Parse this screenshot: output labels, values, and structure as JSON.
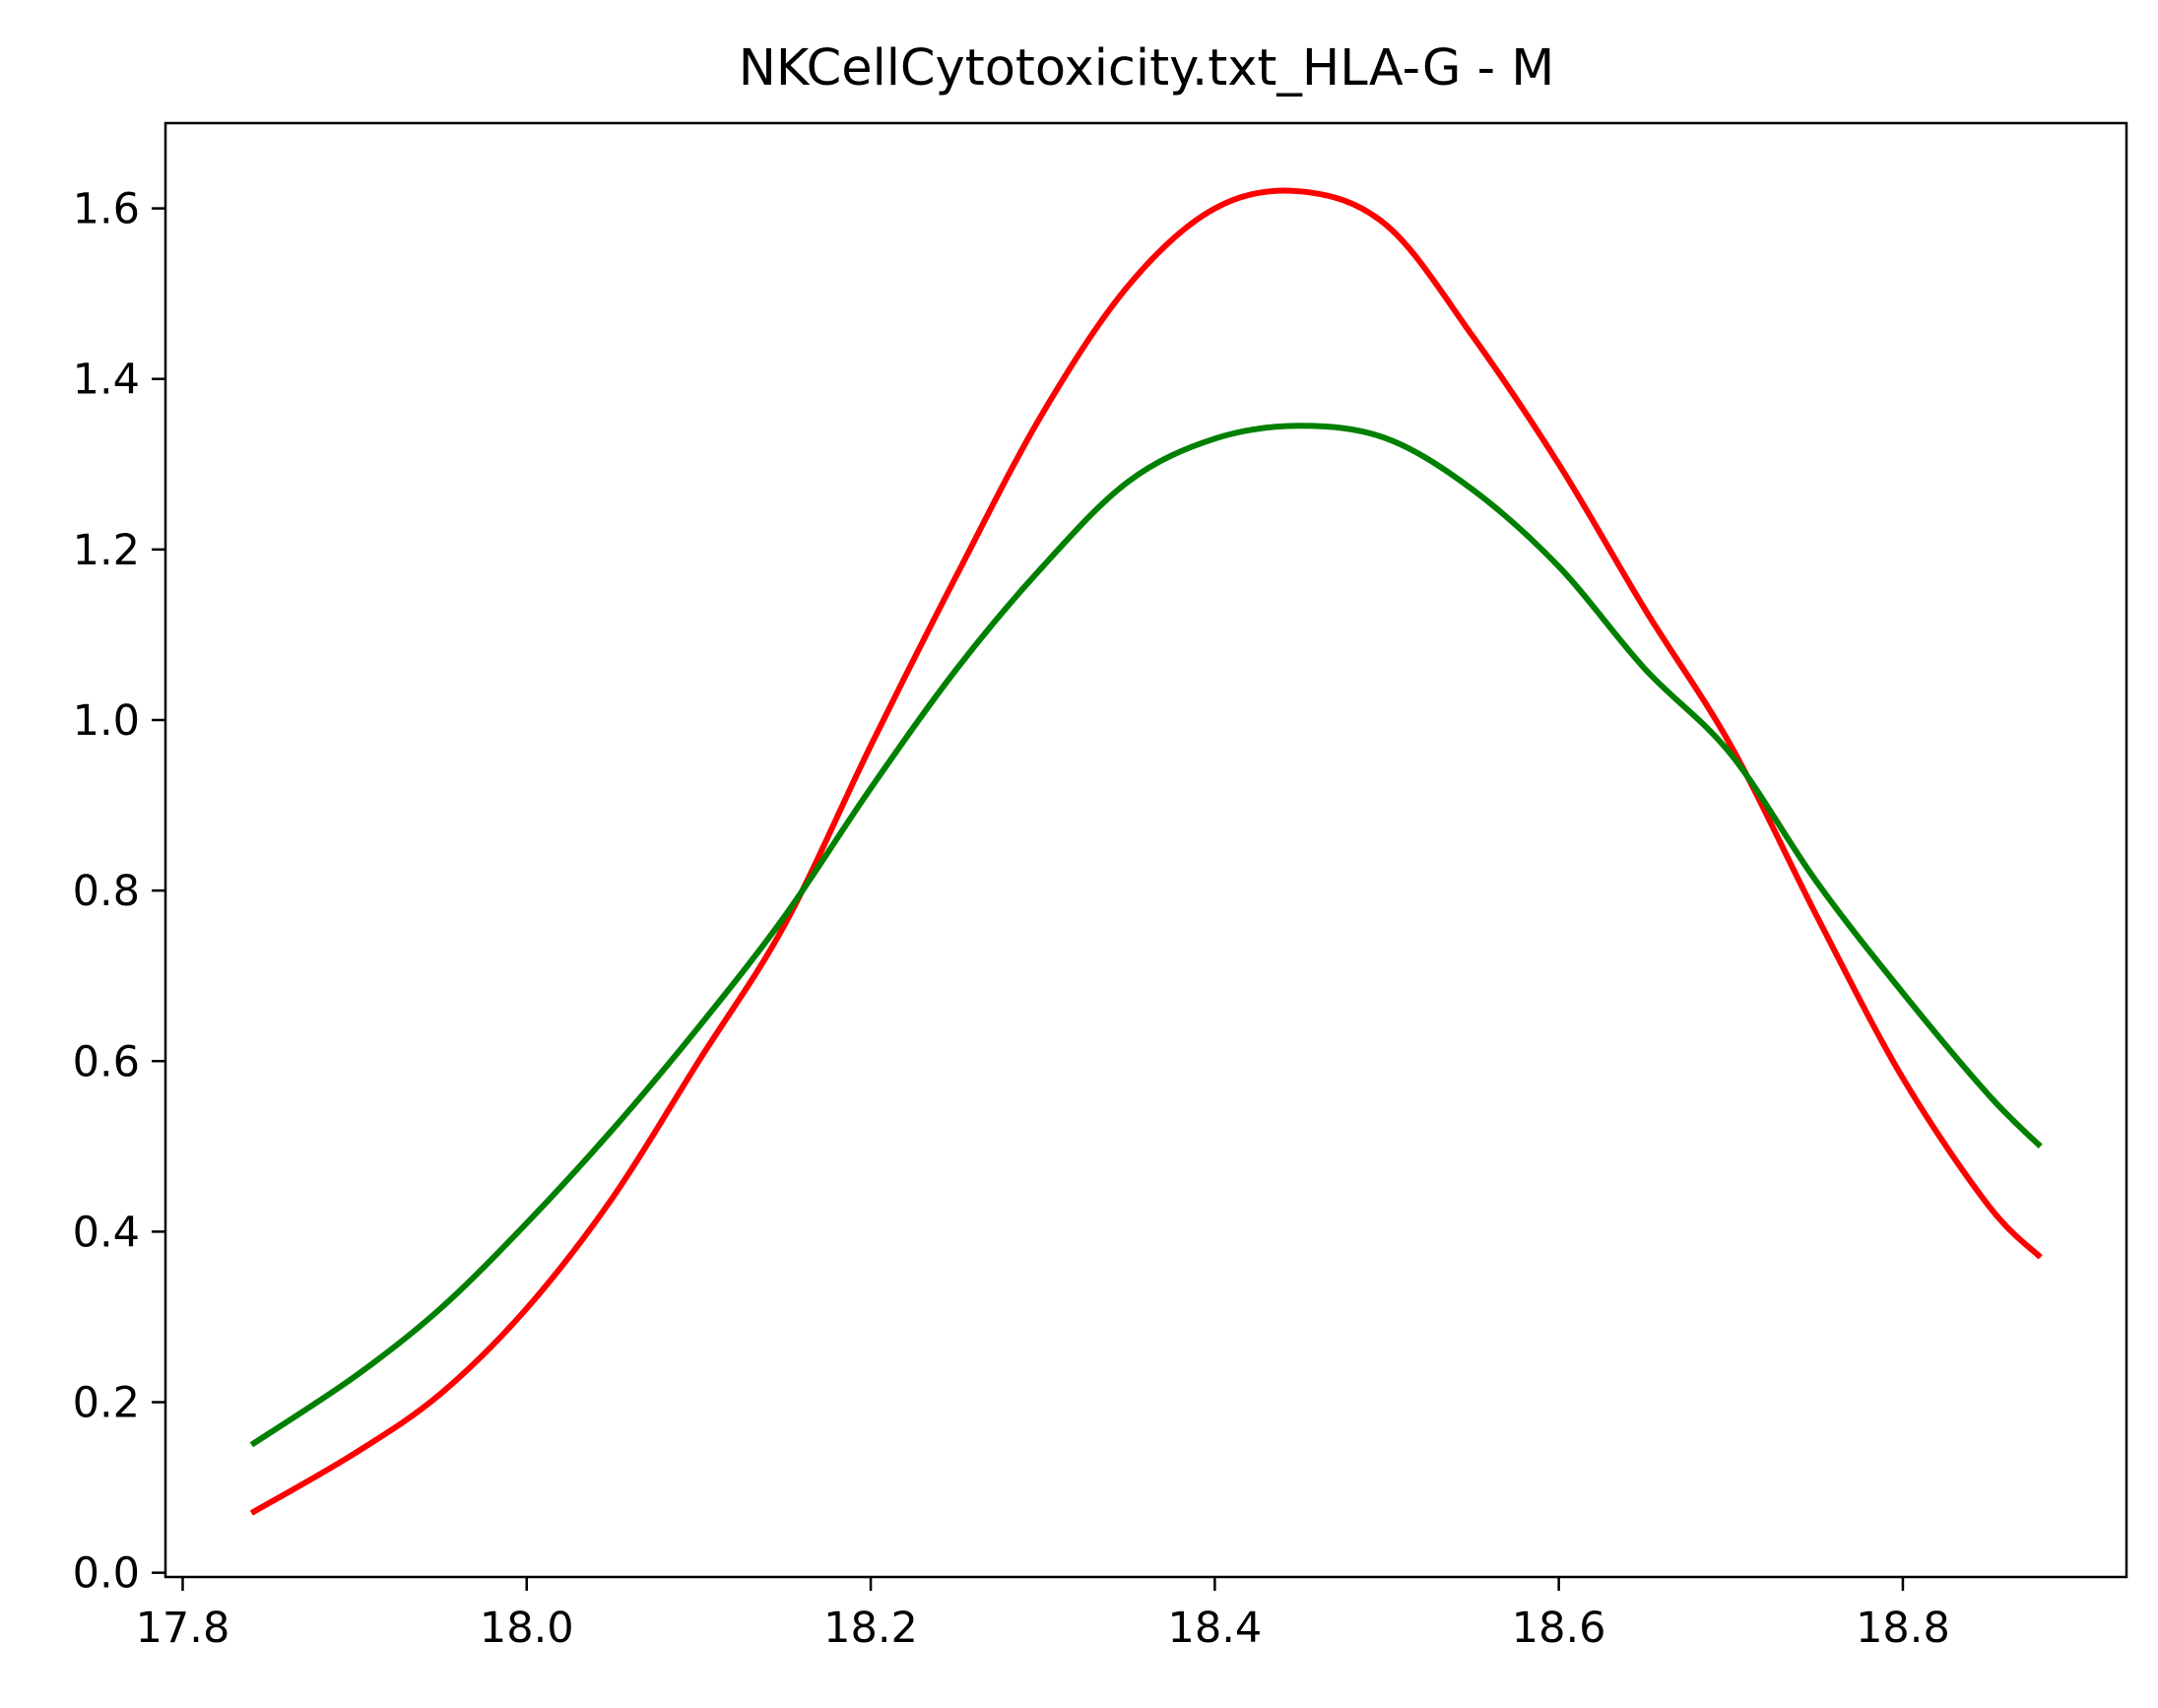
{
  "chart_data": {
    "type": "line",
    "title": "NKCellCytotoxicity.txt_HLA-G - M",
    "xlabel": "",
    "ylabel": "",
    "xlim": [
      17.79,
      18.93
    ],
    "ylim": [
      -0.005,
      1.7
    ],
    "x_ticks": [
      {
        "value": 17.8,
        "label": "17.8"
      },
      {
        "value": 18.0,
        "label": "18.0"
      },
      {
        "value": 18.2,
        "label": "18.2"
      },
      {
        "value": 18.4,
        "label": "18.4"
      },
      {
        "value": 18.6,
        "label": "18.6"
      },
      {
        "value": 18.8,
        "label": "18.8"
      }
    ],
    "y_ticks": [
      {
        "value": 0.0,
        "label": "0.0"
      },
      {
        "value": 0.2,
        "label": "0.2"
      },
      {
        "value": 0.4,
        "label": "0.4"
      },
      {
        "value": 0.6,
        "label": "0.6"
      },
      {
        "value": 0.8,
        "label": "0.8"
      },
      {
        "value": 1.0,
        "label": "1.0"
      },
      {
        "value": 1.2,
        "label": "1.2"
      },
      {
        "value": 1.4,
        "label": "1.4"
      },
      {
        "value": 1.6,
        "label": "1.6"
      }
    ],
    "grid": false,
    "legend": "none",
    "series": [
      {
        "color": "#ff0000",
        "x": [
          17.84,
          17.9,
          17.95,
          18.0,
          18.05,
          18.1,
          18.15,
          18.2,
          18.25,
          18.3,
          18.35,
          18.4,
          18.45,
          18.5,
          18.55,
          18.6,
          18.65,
          18.7,
          18.75,
          18.8,
          18.85,
          18.88
        ],
        "y": [
          0.07,
          0.14,
          0.21,
          0.31,
          0.44,
          0.6,
          0.76,
          0.97,
          1.17,
          1.36,
          1.51,
          1.6,
          1.62,
          1.58,
          1.45,
          1.3,
          1.13,
          0.97,
          0.77,
          0.58,
          0.43,
          0.37
        ]
      },
      {
        "color": "#008000",
        "x": [
          17.84,
          17.9,
          17.95,
          18.0,
          18.05,
          18.1,
          18.15,
          18.2,
          18.25,
          18.3,
          18.35,
          18.4,
          18.45,
          18.5,
          18.55,
          18.6,
          18.65,
          18.7,
          18.75,
          18.8,
          18.85,
          18.88
        ],
        "y": [
          0.15,
          0.23,
          0.31,
          0.41,
          0.52,
          0.64,
          0.77,
          0.92,
          1.06,
          1.18,
          1.28,
          1.33,
          1.345,
          1.33,
          1.27,
          1.18,
          1.06,
          0.96,
          0.81,
          0.68,
          0.56,
          0.5
        ]
      }
    ]
  }
}
